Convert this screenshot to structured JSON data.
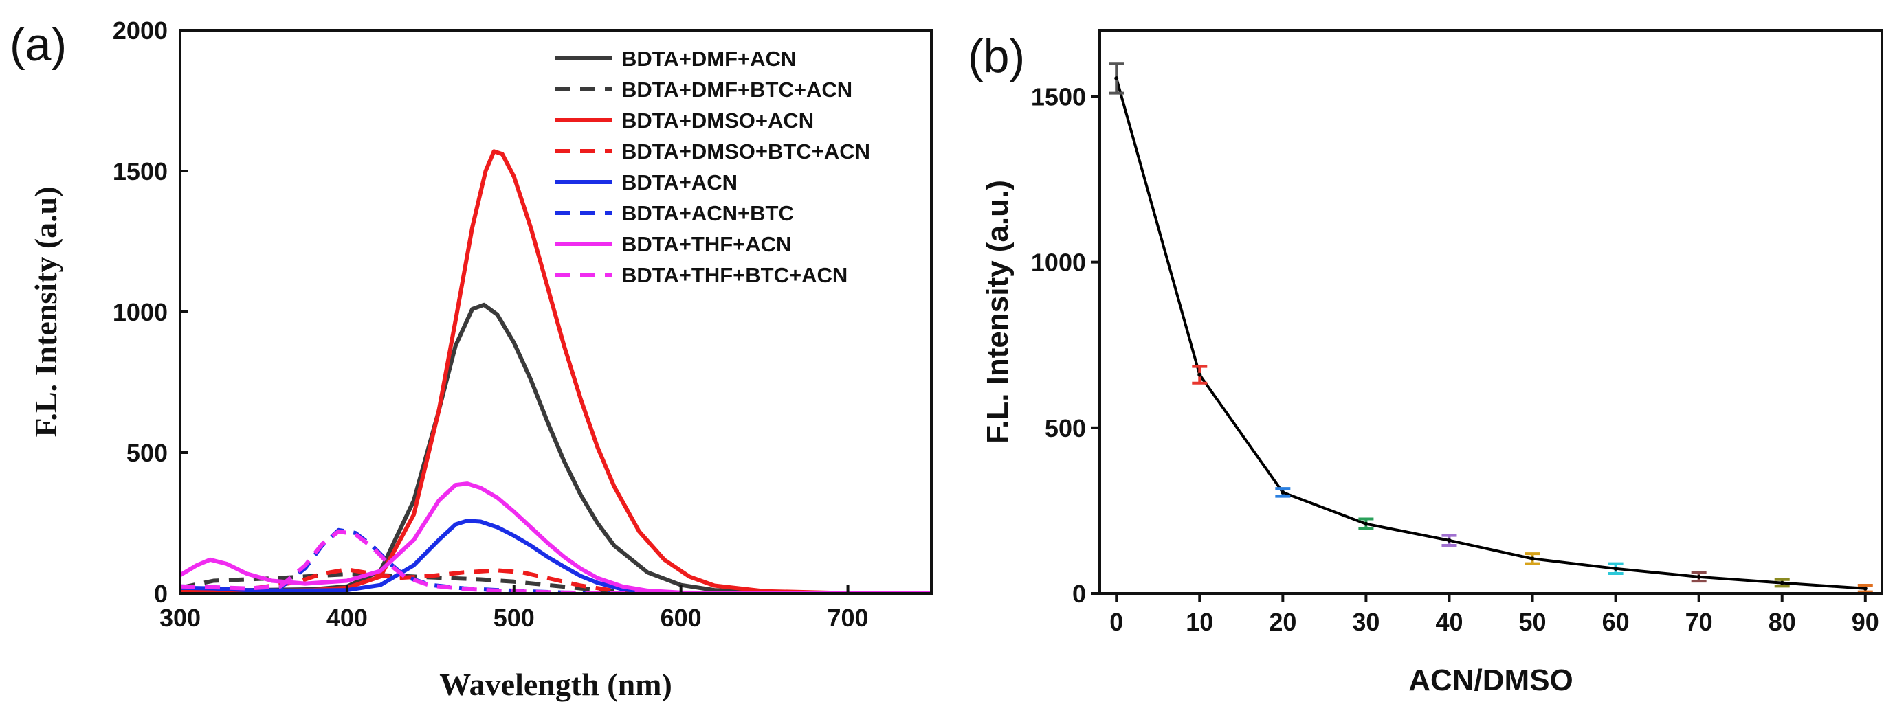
{
  "chart_data": [
    {
      "panel_label": "(a)",
      "type": "line",
      "title": "",
      "xlabel": "Wavelength (nm)",
      "ylabel": "F.L. Intensity (a.u)",
      "xlim": [
        300,
        750
      ],
      "ylim": [
        0,
        2000
      ],
      "xticks": [
        300,
        400,
        500,
        600,
        700
      ],
      "yticks": [
        0,
        500,
        1000,
        1500,
        2000
      ],
      "grid": false,
      "legend_position": "top-right",
      "series": [
        {
          "name": "BDTA+DMF+ACN",
          "color": "#3a3a3a",
          "dash": "solid",
          "points": [
            [
              300,
              10
            ],
            [
              340,
              12
            ],
            [
              380,
              15
            ],
            [
              400,
              25
            ],
            [
              420,
              80
            ],
            [
              440,
              330
            ],
            [
              455,
              650
            ],
            [
              465,
              880
            ],
            [
              475,
              1010
            ],
            [
              482,
              1025
            ],
            [
              490,
              990
            ],
            [
              500,
              890
            ],
            [
              510,
              760
            ],
            [
              520,
              610
            ],
            [
              530,
              470
            ],
            [
              540,
              350
            ],
            [
              550,
              250
            ],
            [
              560,
              170
            ],
            [
              580,
              75
            ],
            [
              600,
              30
            ],
            [
              620,
              12
            ],
            [
              650,
              4
            ],
            [
              700,
              1
            ],
            [
              750,
              0
            ]
          ]
        },
        {
          "name": "BDTA+DMF+BTC+ACN",
          "color": "#3a3a3a",
          "dash": "dashed",
          "points": [
            [
              300,
              20
            ],
            [
              320,
              45
            ],
            [
              340,
              50
            ],
            [
              360,
              55
            ],
            [
              380,
              62
            ],
            [
              400,
              68
            ],
            [
              420,
              65
            ],
            [
              440,
              60
            ],
            [
              460,
              55
            ],
            [
              480,
              50
            ],
            [
              500,
              42
            ],
            [
              520,
              30
            ],
            [
              540,
              18
            ],
            [
              560,
              8
            ],
            [
              600,
              2
            ],
            [
              650,
              0
            ],
            [
              750,
              0
            ]
          ]
        },
        {
          "name": "BDTA+DMSO+ACN",
          "color": "#ee1c1c",
          "dash": "solid",
          "points": [
            [
              300,
              5
            ],
            [
              340,
              8
            ],
            [
              380,
              12
            ],
            [
              400,
              20
            ],
            [
              420,
              60
            ],
            [
              440,
              280
            ],
            [
              455,
              650
            ],
            [
              465,
              970
            ],
            [
              475,
              1300
            ],
            [
              483,
              1500
            ],
            [
              488,
              1570
            ],
            [
              493,
              1560
            ],
            [
              500,
              1480
            ],
            [
              510,
              1300
            ],
            [
              520,
              1090
            ],
            [
              530,
              880
            ],
            [
              540,
              690
            ],
            [
              550,
              520
            ],
            [
              560,
              380
            ],
            [
              575,
              220
            ],
            [
              590,
              120
            ],
            [
              605,
              60
            ],
            [
              620,
              28
            ],
            [
              650,
              8
            ],
            [
              700,
              1
            ],
            [
              750,
              0
            ]
          ]
        },
        {
          "name": "BDTA+DMSO+BTC+ACN",
          "color": "#ee1c1c",
          "dash": "dashed",
          "points": [
            [
              300,
              5
            ],
            [
              340,
              15
            ],
            [
              370,
              40
            ],
            [
              385,
              70
            ],
            [
              400,
              85
            ],
            [
              415,
              70
            ],
            [
              430,
              55
            ],
            [
              450,
              62
            ],
            [
              470,
              75
            ],
            [
              490,
              82
            ],
            [
              505,
              75
            ],
            [
              520,
              55
            ],
            [
              540,
              28
            ],
            [
              560,
              10
            ],
            [
              600,
              2
            ],
            [
              650,
              0
            ],
            [
              750,
              0
            ]
          ]
        },
        {
          "name": "BDTA+ACN",
          "color": "#1a2ee6",
          "dash": "solid",
          "points": [
            [
              300,
              20
            ],
            [
              320,
              18
            ],
            [
              340,
              12
            ],
            [
              370,
              10
            ],
            [
              400,
              12
            ],
            [
              420,
              30
            ],
            [
              440,
              100
            ],
            [
              455,
              190
            ],
            [
              465,
              245
            ],
            [
              472,
              258
            ],
            [
              480,
              255
            ],
            [
              490,
              235
            ],
            [
              500,
              205
            ],
            [
              510,
              170
            ],
            [
              520,
              130
            ],
            [
              530,
              95
            ],
            [
              540,
              62
            ],
            [
              550,
              38
            ],
            [
              565,
              15
            ],
            [
              580,
              6
            ],
            [
              600,
              2
            ],
            [
              650,
              0
            ],
            [
              750,
              0
            ]
          ]
        },
        {
          "name": "BDTA+ACN+BTC",
          "color": "#1a2ee6",
          "dash": "dashed",
          "points": [
            [
              300,
              25
            ],
            [
              320,
              22
            ],
            [
              340,
              15
            ],
            [
              360,
              20
            ],
            [
              375,
              90
            ],
            [
              385,
              170
            ],
            [
              395,
              225
            ],
            [
              405,
              215
            ],
            [
              415,
              170
            ],
            [
              425,
              110
            ],
            [
              435,
              60
            ],
            [
              450,
              30
            ],
            [
              470,
              18
            ],
            [
              490,
              12
            ],
            [
              510,
              7
            ],
            [
              530,
              3
            ],
            [
              560,
              1
            ],
            [
              750,
              0
            ]
          ]
        },
        {
          "name": "BDTA+THF+ACN",
          "color": "#f02cf0",
          "dash": "solid",
          "points": [
            [
              300,
              65
            ],
            [
              310,
              100
            ],
            [
              318,
              120
            ],
            [
              328,
              105
            ],
            [
              340,
              70
            ],
            [
              355,
              45
            ],
            [
              375,
              35
            ],
            [
              400,
              45
            ],
            [
              420,
              80
            ],
            [
              440,
              190
            ],
            [
              455,
              330
            ],
            [
              465,
              385
            ],
            [
              472,
              390
            ],
            [
              480,
              375
            ],
            [
              490,
              340
            ],
            [
              500,
              290
            ],
            [
              510,
              235
            ],
            [
              520,
              180
            ],
            [
              530,
              130
            ],
            [
              540,
              88
            ],
            [
              550,
              55
            ],
            [
              565,
              25
            ],
            [
              580,
              10
            ],
            [
              600,
              3
            ],
            [
              650,
              0
            ],
            [
              750,
              0
            ]
          ]
        },
        {
          "name": "BDTA+THF+BTC+ACN",
          "color": "#f02cf0",
          "dash": "dashed",
          "points": [
            [
              300,
              25
            ],
            [
              320,
              22
            ],
            [
              340,
              18
            ],
            [
              360,
              25
            ],
            [
              375,
              100
            ],
            [
              385,
              175
            ],
            [
              395,
              220
            ],
            [
              405,
              210
            ],
            [
              415,
              165
            ],
            [
              425,
              105
            ],
            [
              435,
              58
            ],
            [
              450,
              28
            ],
            [
              470,
              16
            ],
            [
              490,
              10
            ],
            [
              510,
              6
            ],
            [
              530,
              3
            ],
            [
              560,
              1
            ],
            [
              750,
              0
            ]
          ]
        }
      ]
    },
    {
      "panel_label": "(b)",
      "type": "line",
      "title": "",
      "xlabel": "ACN/DMSO",
      "ylabel": "F.L. Intensity (a.u.)",
      "xlim": [
        -2,
        92
      ],
      "ylim": [
        0,
        1700
      ],
      "xticks": [
        0,
        10,
        20,
        30,
        40,
        50,
        60,
        70,
        80,
        90
      ],
      "yticks": [
        0,
        500,
        1000,
        1500
      ],
      "grid": false,
      "line_color": "#000000",
      "x": [
        0,
        10,
        20,
        30,
        40,
        50,
        60,
        70,
        80,
        90
      ],
      "y": [
        1555,
        660,
        305,
        210,
        160,
        105,
        75,
        50,
        32,
        15
      ],
      "error": [
        45,
        25,
        12,
        15,
        15,
        15,
        15,
        13,
        10,
        10
      ],
      "errorbar_colors": [
        "#555555",
        "#e8372f",
        "#2a7fe0",
        "#2aa05a",
        "#a070d0",
        "#d6a21a",
        "#2cc8d8",
        "#8a4a4a",
        "#8a8a20",
        "#e07020"
      ]
    }
  ]
}
